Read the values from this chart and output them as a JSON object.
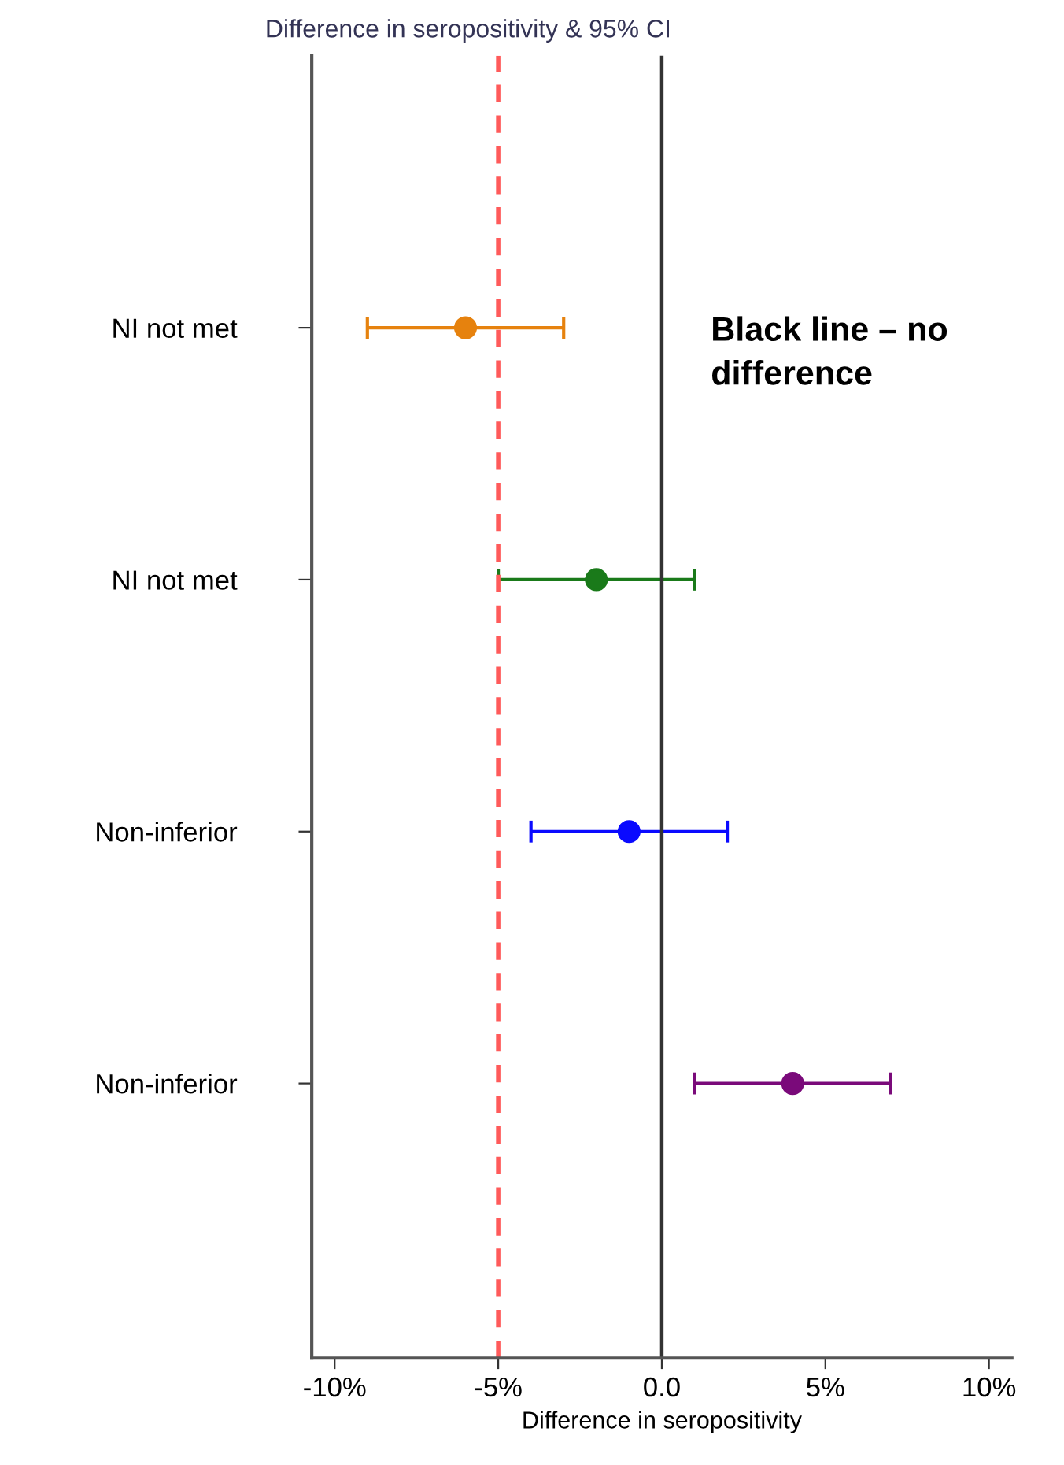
{
  "chart_data": {
    "type": "scatter",
    "orientation": "horizontal",
    "title": "Difference in seropositivity & 95% CI",
    "xlabel": "Difference in seropositivity",
    "categories": [
      "NI not met",
      "NI not met",
      "Non-inferior",
      "Non-inferior"
    ],
    "values": [
      -6,
      -2,
      -1,
      4
    ],
    "errors": [
      [
        -9,
        -3
      ],
      [
        -5,
        1
      ],
      [
        -4,
        2
      ],
      [
        1,
        7
      ]
    ],
    "colors": [
      "#e6820e",
      "#1a7a1a",
      "#0a0aff",
      "#7a0a7a"
    ],
    "xlim": [
      -10.7,
      10.7
    ],
    "xticks": [
      {
        "value": -10,
        "label": "-10%"
      },
      {
        "value": -5,
        "label": "-5%"
      },
      {
        "value": 0,
        "label": "0.0"
      },
      {
        "value": 5,
        "label": "5%"
      },
      {
        "value": 10,
        "label": "10%"
      }
    ],
    "ref_lines": [
      {
        "axis": "x",
        "value": -5,
        "color": "#ff5a5a",
        "line_style": "dashed"
      },
      {
        "axis": "x",
        "value": 0,
        "color": "#333333",
        "line_style": "solid"
      }
    ],
    "annotations": [
      "Black line – no difference"
    ],
    "marker": "circle",
    "grid": false,
    "legend": false
  }
}
